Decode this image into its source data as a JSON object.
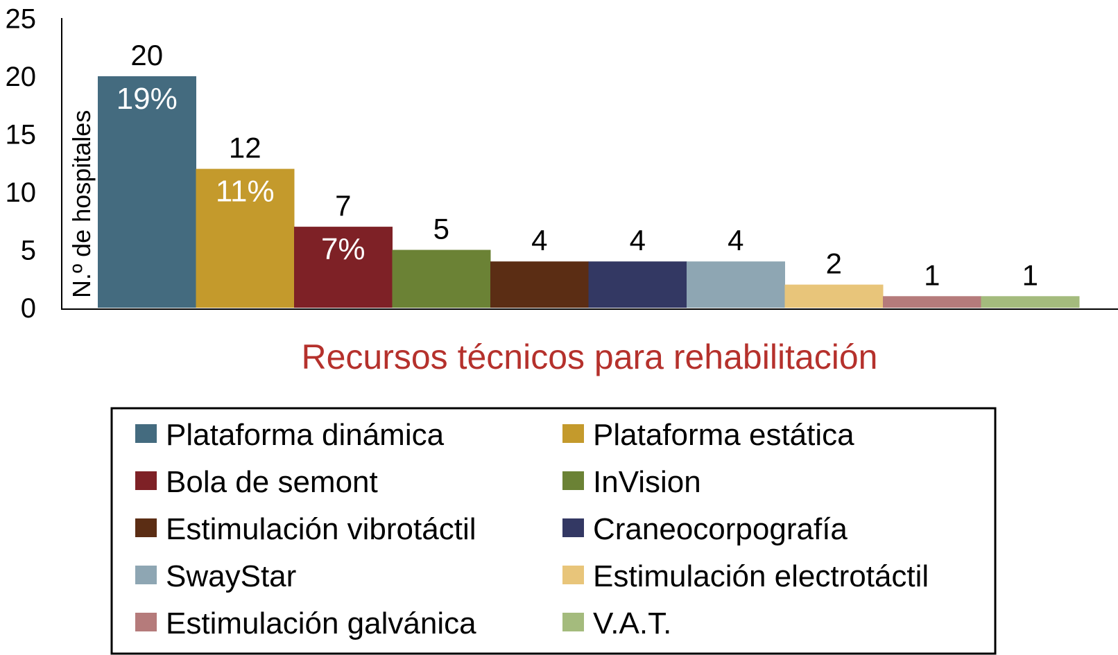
{
  "chart_data": {
    "type": "bar",
    "title": "",
    "xlabel": "Recursos técnicos para rehabilitación",
    "ylabel": "N.º de hospitales",
    "ylim": [
      0,
      25
    ],
    "yticks": [
      "0",
      "5",
      "10",
      "15",
      "20",
      "25"
    ],
    "grid": false,
    "legend_position": "bottom",
    "categories": [
      "Plataforma dinámica",
      "Plataforma estática",
      "Bola de semont",
      "InVision",
      "Estimulación vibrotáctil",
      "Craneocorpografía",
      "SwayStar",
      "Estimulación electrotáctil",
      "Estimulación galvánica",
      "V.A.T."
    ],
    "values": [
      20,
      12,
      7,
      5,
      4,
      4,
      4,
      2,
      1,
      1
    ],
    "value_labels": [
      "20",
      "12",
      "7",
      "5",
      "4",
      "4",
      "4",
      "2",
      "1",
      "1"
    ],
    "percent_labels": [
      "19%",
      "11%",
      "7%",
      "",
      "",
      "",
      "",
      "",
      "",
      ""
    ],
    "colors": [
      "#446b7f",
      "#c49a2c",
      "#7e2126",
      "#6b8235",
      "#5b2d14",
      "#333863",
      "#8ea6b3",
      "#e8c57a",
      "#b57b7b",
      "#a4bb7d"
    ],
    "xlabel_color": "#b5312c"
  }
}
